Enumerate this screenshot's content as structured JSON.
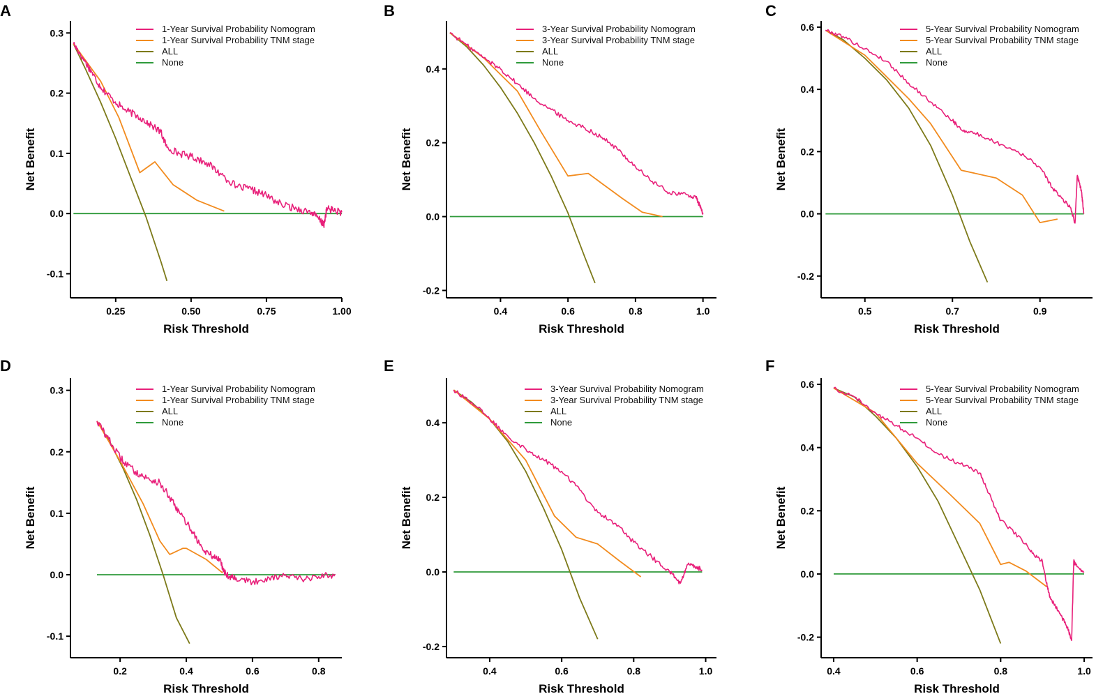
{
  "colors": {
    "nomogram": "#e8207a",
    "tnm": "#f28b1e",
    "all": "#7d7a1a",
    "none": "#2e9a3a"
  },
  "chart_data": [
    {
      "id": "A",
      "type": "line",
      "xlabel": "Risk Threshold",
      "ylabel": "Net Benefit",
      "xlim": [
        0.1,
        1.0
      ],
      "ylim": [
        -0.14,
        0.32
      ],
      "xticks": [
        0.25,
        0.5,
        0.75,
        1.0
      ],
      "xtick_labels": [
        "0.25",
        "0.50",
        "0.75",
        "1.00"
      ],
      "yticks": [
        -0.1,
        0.0,
        0.1,
        0.2,
        0.3
      ],
      "ytick_labels": [
        "-0.1",
        "0.0",
        "0.1",
        "0.2",
        "0.3"
      ],
      "legend": [
        "1-Year Survival Probability Nomogram",
        "1-Year Survival Probability TNM stage",
        "ALL",
        "None"
      ],
      "series": [
        {
          "name": "1-Year Survival Probability Nomogram",
          "key": "nomogram",
          "noisy": true,
          "x": [
            0.11,
            0.14,
            0.17,
            0.2,
            0.24,
            0.28,
            0.32,
            0.36,
            0.4,
            0.42,
            0.46,
            0.5,
            0.55,
            0.6,
            0.65,
            0.7,
            0.75,
            0.8,
            0.85,
            0.9,
            0.93,
            0.94,
            0.95,
            0.97,
            1.0
          ],
          "y": [
            0.282,
            0.26,
            0.235,
            0.21,
            0.19,
            0.172,
            0.163,
            0.15,
            0.135,
            0.11,
            0.1,
            0.095,
            0.085,
            0.065,
            0.045,
            0.04,
            0.03,
            0.015,
            0.008,
            0.002,
            -0.012,
            -0.02,
            0.008,
            0.006,
            0.002
          ]
        },
        {
          "name": "1-Year Survival Probability TNM stage",
          "key": "tnm",
          "noisy": false,
          "x": [
            0.11,
            0.2,
            0.26,
            0.33,
            0.38,
            0.44,
            0.52,
            0.61
          ],
          "y": [
            0.282,
            0.22,
            0.16,
            0.068,
            0.086,
            0.048,
            0.022,
            0.004
          ]
        },
        {
          "name": "ALL",
          "key": "all",
          "noisy": false,
          "x": [
            0.11,
            0.15,
            0.2,
            0.25,
            0.3,
            0.35,
            0.4,
            0.42
          ],
          "y": [
            0.282,
            0.24,
            0.185,
            0.125,
            0.06,
            -0.005,
            -0.08,
            -0.112
          ]
        },
        {
          "name": "None",
          "key": "none",
          "noisy": false,
          "x": [
            0.11,
            1.0
          ],
          "y": [
            0.0,
            0.0
          ]
        }
      ]
    },
    {
      "id": "B",
      "type": "line",
      "xlabel": "Risk Threshold",
      "ylabel": "Net Benefit",
      "xlim": [
        0.24,
        1.04
      ],
      "ylim": [
        -0.22,
        0.53
      ],
      "xticks": [
        0.4,
        0.6,
        0.8,
        1.0
      ],
      "xtick_labels": [
        "0.4",
        "0.6",
        "0.8",
        "1.0"
      ],
      "yticks": [
        -0.2,
        0.0,
        0.2,
        0.4
      ],
      "ytick_labels": [
        "-0.2",
        "0.0",
        "0.2",
        "0.4"
      ],
      "legend": [
        "3-Year Survival Probability Nomogram",
        "3-Year Survival Probability TNM stage",
        "ALL",
        "None"
      ],
      "series": [
        {
          "name": "3-Year Survival Probability Nomogram",
          "key": "nomogram",
          "noisy": true,
          "x": [
            0.25,
            0.3,
            0.35,
            0.4,
            0.45,
            0.5,
            0.55,
            0.6,
            0.65,
            0.7,
            0.75,
            0.8,
            0.85,
            0.9,
            0.95,
            0.98,
            0.99,
            1.0
          ],
          "y": [
            0.498,
            0.465,
            0.43,
            0.4,
            0.36,
            0.32,
            0.29,
            0.26,
            0.24,
            0.215,
            0.18,
            0.135,
            0.095,
            0.065,
            0.06,
            0.05,
            0.03,
            0.01
          ]
        },
        {
          "name": "3-Year Survival Probability TNM stage",
          "key": "tnm",
          "noisy": false,
          "x": [
            0.25,
            0.35,
            0.45,
            0.52,
            0.6,
            0.66,
            0.7,
            0.76,
            0.82,
            0.88
          ],
          "y": [
            0.498,
            0.43,
            0.34,
            0.23,
            0.11,
            0.117,
            0.09,
            0.05,
            0.012,
            0.0
          ]
        },
        {
          "name": "ALL",
          "key": "all",
          "noisy": false,
          "x": [
            0.25,
            0.3,
            0.35,
            0.4,
            0.45,
            0.5,
            0.55,
            0.6,
            0.65,
            0.68
          ],
          "y": [
            0.498,
            0.46,
            0.41,
            0.35,
            0.28,
            0.2,
            0.11,
            0.01,
            -0.11,
            -0.18
          ]
        },
        {
          "name": "None",
          "key": "none",
          "noisy": false,
          "x": [
            0.25,
            1.0
          ],
          "y": [
            0.0,
            0.0
          ]
        }
      ]
    },
    {
      "id": "C",
      "type": "line",
      "xlabel": "Risk Threshold",
      "ylabel": "Net Benefit",
      "xlim": [
        0.4,
        1.02
      ],
      "ylim": [
        -0.27,
        0.62
      ],
      "xticks": [
        0.5,
        0.7,
        0.9
      ],
      "xtick_labels": [
        "0.5",
        "0.7",
        "0.9"
      ],
      "yticks": [
        -0.2,
        0.0,
        0.2,
        0.4,
        0.6
      ],
      "ytick_labels": [
        "-0.2",
        "0.0",
        "0.2",
        "0.4",
        "0.6"
      ],
      "legend": [
        "5-Year Survival Probability Nomogram",
        "5-Year Survival Probability TNM stage",
        "ALL",
        "None"
      ],
      "series": [
        {
          "name": "5-Year Survival Probability Nomogram",
          "key": "nomogram",
          "noisy": true,
          "x": [
            0.41,
            0.45,
            0.5,
            0.55,
            0.6,
            0.65,
            0.7,
            0.72,
            0.75,
            0.8,
            0.85,
            0.9,
            0.93,
            0.95,
            0.97,
            0.98,
            0.985,
            0.99,
            0.995,
            1.0
          ],
          "y": [
            0.59,
            0.57,
            0.53,
            0.49,
            0.42,
            0.36,
            0.3,
            0.27,
            0.26,
            0.23,
            0.2,
            0.15,
            0.08,
            0.05,
            0.02,
            -0.03,
            0.12,
            0.1,
            0.07,
            0.0
          ]
        },
        {
          "name": "5-Year Survival Probability TNM stage",
          "key": "tnm",
          "noisy": false,
          "x": [
            0.41,
            0.5,
            0.6,
            0.65,
            0.72,
            0.8,
            0.86,
            0.9,
            0.94
          ],
          "y": [
            0.59,
            0.51,
            0.37,
            0.29,
            0.14,
            0.115,
            0.06,
            -0.028,
            -0.017
          ]
        },
        {
          "name": "ALL",
          "key": "all",
          "noisy": false,
          "x": [
            0.41,
            0.45,
            0.5,
            0.55,
            0.6,
            0.65,
            0.7,
            0.74,
            0.78
          ],
          "y": [
            0.59,
            0.56,
            0.5,
            0.43,
            0.34,
            0.22,
            0.06,
            -0.09,
            -0.22
          ]
        },
        {
          "name": "None",
          "key": "none",
          "noisy": false,
          "x": [
            0.41,
            1.0
          ],
          "y": [
            0.0,
            0.0
          ]
        }
      ]
    },
    {
      "id": "D",
      "type": "line",
      "xlabel": "Risk Threshold",
      "ylabel": "Net Benefit",
      "xlim": [
        0.05,
        0.87
      ],
      "ylim": [
        -0.135,
        0.32
      ],
      "xticks": [
        0.2,
        0.4,
        0.6,
        0.8
      ],
      "xtick_labels": [
        "0.2",
        "0.4",
        "0.6",
        "0.8"
      ],
      "yticks": [
        -0.1,
        0.0,
        0.1,
        0.2,
        0.3
      ],
      "ytick_labels": [
        "-0.1",
        "0.0",
        "0.1",
        "0.2",
        "0.3"
      ],
      "legend": [
        "1-Year Survival Probability Nomogram",
        "1-Year Survival Probability TNM stage",
        "ALL",
        "None"
      ],
      "series": [
        {
          "name": "1-Year Survival Probability Nomogram",
          "key": "nomogram",
          "noisy": true,
          "x": [
            0.13,
            0.16,
            0.2,
            0.24,
            0.28,
            0.32,
            0.35,
            0.38,
            0.42,
            0.45,
            0.48,
            0.5,
            0.52,
            0.55,
            0.6,
            0.65,
            0.7,
            0.75,
            0.8,
            0.85
          ],
          "y": [
            0.25,
            0.225,
            0.19,
            0.17,
            0.157,
            0.15,
            0.125,
            0.1,
            0.07,
            0.04,
            0.03,
            0.025,
            0.0,
            -0.005,
            -0.012,
            -0.005,
            0.0,
            -0.008,
            -0.003,
            0.001
          ]
        },
        {
          "name": "1-Year Survival Probability TNM stage",
          "key": "tnm",
          "noisy": false,
          "x": [
            0.13,
            0.2,
            0.27,
            0.32,
            0.35,
            0.39,
            0.4,
            0.46,
            0.51
          ],
          "y": [
            0.25,
            0.185,
            0.115,
            0.055,
            0.033,
            0.043,
            0.043,
            0.025,
            0.003
          ]
        },
        {
          "name": "ALL",
          "key": "all",
          "noisy": false,
          "x": [
            0.13,
            0.17,
            0.21,
            0.25,
            0.29,
            0.33,
            0.37,
            0.41
          ],
          "y": [
            0.25,
            0.215,
            0.172,
            0.122,
            0.064,
            0.0,
            -0.07,
            -0.112
          ]
        },
        {
          "name": "None",
          "key": "none",
          "noisy": false,
          "x": [
            0.13,
            0.85
          ],
          "y": [
            0.0,
            0.0
          ]
        }
      ]
    },
    {
      "id": "E",
      "type": "line",
      "xlabel": "Risk Threshold",
      "ylabel": "Net Benefit",
      "xlim": [
        0.28,
        1.03
      ],
      "ylim": [
        -0.23,
        0.52
      ],
      "xticks": [
        0.4,
        0.6,
        0.8,
        1.0
      ],
      "xtick_labels": [
        "0.4",
        "0.6",
        "0.8",
        "1.0"
      ],
      "yticks": [
        -0.2,
        0.0,
        0.2,
        0.4
      ],
      "ytick_labels": [
        "-0.2",
        "0.0",
        "0.2",
        "0.4"
      ],
      "legend": [
        "3-Year Survival Probability Nomogram",
        "3-Year Survival Probability TNM stage",
        "ALL",
        "None"
      ],
      "series": [
        {
          "name": "3-Year Survival Probability Nomogram",
          "key": "nomogram",
          "noisy": true,
          "x": [
            0.3,
            0.35,
            0.4,
            0.45,
            0.5,
            0.55,
            0.6,
            0.65,
            0.7,
            0.75,
            0.8,
            0.85,
            0.9,
            0.93,
            0.95,
            0.97,
            0.99
          ],
          "y": [
            0.488,
            0.455,
            0.41,
            0.365,
            0.33,
            0.3,
            0.27,
            0.22,
            0.16,
            0.13,
            0.08,
            0.04,
            0.0,
            -0.03,
            0.02,
            0.015,
            0.006
          ]
        },
        {
          "name": "3-Year Survival Probability TNM stage",
          "key": "tnm",
          "noisy": false,
          "x": [
            0.3,
            0.4,
            0.5,
            0.58,
            0.64,
            0.7,
            0.76,
            0.82
          ],
          "y": [
            0.488,
            0.41,
            0.3,
            0.15,
            0.093,
            0.075,
            0.03,
            -0.013
          ]
        },
        {
          "name": "ALL",
          "key": "all",
          "noisy": false,
          "x": [
            0.3,
            0.35,
            0.4,
            0.45,
            0.5,
            0.55,
            0.6,
            0.65,
            0.7
          ],
          "y": [
            0.488,
            0.455,
            0.41,
            0.35,
            0.27,
            0.17,
            0.06,
            -0.07,
            -0.18
          ]
        },
        {
          "name": "None",
          "key": "none",
          "noisy": false,
          "x": [
            0.3,
            0.99
          ],
          "y": [
            0.0,
            0.0
          ]
        }
      ]
    },
    {
      "id": "F",
      "type": "line",
      "xlabel": "Risk Threshold",
      "ylabel": "Net Benefit",
      "xlim": [
        0.37,
        1.02
      ],
      "ylim": [
        -0.265,
        0.62
      ],
      "xticks": [
        0.4,
        0.6,
        0.8,
        1.0
      ],
      "xtick_labels": [
        "0.4",
        "0.6",
        "0.8",
        "1.0"
      ],
      "yticks": [
        -0.2,
        0.0,
        0.2,
        0.4,
        0.6
      ],
      "ytick_labels": [
        "-0.2",
        "0.0",
        "0.2",
        "0.4",
        "0.6"
      ],
      "legend": [
        "5-Year Survival Probability Nomogram",
        "5-Year Survival Probability TNM stage",
        "ALL",
        "None"
      ],
      "series": [
        {
          "name": "5-Year Survival Probability Nomogram",
          "key": "nomogram",
          "noisy": true,
          "x": [
            0.4,
            0.45,
            0.5,
            0.55,
            0.6,
            0.65,
            0.7,
            0.75,
            0.78,
            0.8,
            0.85,
            0.88,
            0.9,
            0.91,
            0.92,
            0.94,
            0.96,
            0.97,
            0.975,
            0.98,
            1.0
          ],
          "y": [
            0.588,
            0.56,
            0.51,
            0.47,
            0.43,
            0.38,
            0.35,
            0.32,
            0.23,
            0.17,
            0.11,
            0.06,
            0.04,
            -0.03,
            -0.08,
            -0.12,
            -0.17,
            -0.21,
            0.04,
            0.03,
            0.005
          ]
        },
        {
          "name": "5-Year Survival Probability TNM stage",
          "key": "tnm",
          "noisy": false,
          "x": [
            0.4,
            0.5,
            0.6,
            0.68,
            0.75,
            0.8,
            0.82,
            0.86,
            0.91
          ],
          "y": [
            0.588,
            0.51,
            0.35,
            0.25,
            0.16,
            0.03,
            0.037,
            0.01,
            -0.04
          ]
        },
        {
          "name": "ALL",
          "key": "all",
          "noisy": false,
          "x": [
            0.4,
            0.45,
            0.5,
            0.55,
            0.6,
            0.65,
            0.7,
            0.75,
            0.8
          ],
          "y": [
            0.588,
            0.56,
            0.5,
            0.43,
            0.34,
            0.23,
            0.09,
            -0.05,
            -0.22
          ]
        },
        {
          "name": "None",
          "key": "none",
          "noisy": false,
          "x": [
            0.4,
            1.0
          ],
          "y": [
            0.0,
            0.0
          ]
        }
      ]
    }
  ]
}
